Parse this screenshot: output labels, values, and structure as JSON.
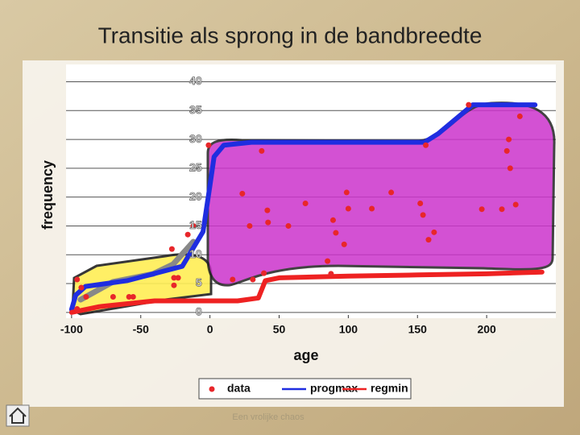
{
  "chart_data": {
    "type": "scatter-line",
    "title": "Transitie als sprong in de bandbreedte",
    "xlabel": "age",
    "ylabel": "frequency",
    "footer": "Een vrolijke chaos",
    "xlim": [
      -104,
      250
    ],
    "ylim": [
      -1,
      43
    ],
    "xticks": [
      -100,
      -50,
      0,
      50,
      100,
      150,
      200
    ],
    "yticks": [
      0,
      5,
      10,
      15,
      20,
      25,
      30,
      35,
      40
    ],
    "grid": true,
    "legend": "bottom",
    "series": [
      {
        "name": "data",
        "color": "#e8262a",
        "kind": "scatter",
        "x": [
          -96,
          -93,
          -89.5,
          -96,
          -70,
          -58.5,
          -55.5,
          -26,
          -23,
          -26,
          -27.5,
          -16,
          -12,
          -1,
          37.4,
          23.4,
          41.5,
          42,
          56.7,
          28.7,
          69,
          98.8,
          100,
          89,
          91,
          97,
          85,
          87.5,
          117,
          131,
          152,
          154,
          162,
          158,
          196.5,
          211,
          221,
          217,
          214.6,
          216,
          224,
          187,
          156,
          16.4,
          39,
          31
        ],
        "values": [
          5.7,
          4.3,
          2.7,
          0.6,
          2.7,
          2.7,
          2.7,
          6,
          6,
          4.7,
          11,
          13.5,
          15,
          29,
          28,
          20.6,
          17.7,
          15.6,
          15,
          15,
          18.9,
          20.8,
          18,
          16,
          13.8,
          11.8,
          8.9,
          6.7,
          18,
          20.8,
          18.9,
          16.9,
          13.9,
          12.6,
          17.9,
          17.9,
          18.7,
          25,
          28,
          30,
          34,
          36,
          29,
          5.7,
          6.8,
          5.7
        ]
      },
      {
        "name": "progmax",
        "color": "#1f2de0",
        "kind": "line",
        "x": [
          -100,
          -97,
          -90,
          -60,
          -20,
          -5,
          0,
          3,
          10,
          30,
          50,
          100,
          155,
          165,
          175,
          190,
          220,
          235
        ],
        "values": [
          0.5,
          3,
          4.5,
          5.5,
          8,
          14,
          22,
          27,
          29,
          29.5,
          29.5,
          29.5,
          29.5,
          31,
          33,
          36,
          36,
          36
        ]
      },
      {
        "name": "regmin",
        "color": "#ee2222",
        "kind": "line",
        "x": [
          -100,
          -80,
          -40,
          0,
          20,
          35,
          40,
          50,
          100,
          150,
          200,
          240
        ],
        "values": [
          0,
          1,
          2,
          2,
          2,
          2.5,
          5.5,
          6,
          6.3,
          6.5,
          6.7,
          7
        ]
      }
    ]
  }
}
